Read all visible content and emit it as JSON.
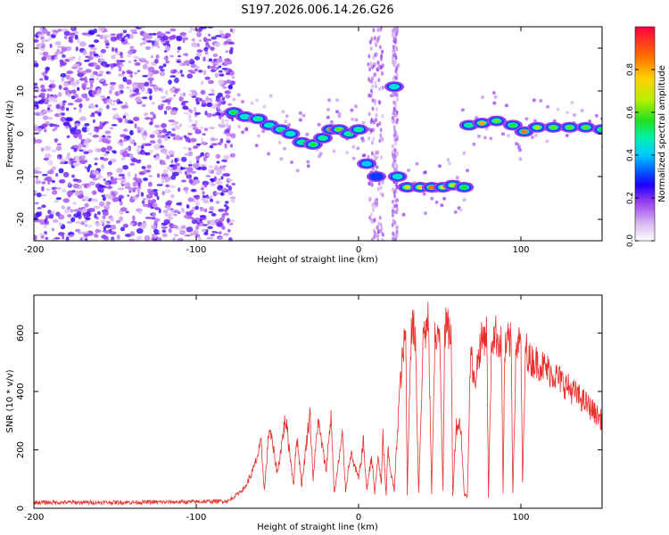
{
  "title": "S197.2026.006.14.26.G26",
  "chart_data": [
    {
      "type": "heatmap",
      "xlabel": "Height of straight line (km)",
      "ylabel": "Frequency (Hz)",
      "xlim": [
        -200,
        150
      ],
      "ylim": [
        -25,
        25
      ],
      "x_ticks": [
        -200,
        -100,
        0,
        100
      ],
      "y_ticks": [
        -20,
        -10,
        0,
        10,
        20
      ],
      "colorbar": {
        "label": "Normalized spectral amplitude",
        "range": [
          0,
          1
        ],
        "ticks": [
          0.0,
          0.2,
          0.4,
          0.6,
          0.8
        ],
        "tick_labels": [
          "0.0",
          "0.2",
          "0.4",
          "0.6",
          "0.8"
        ],
        "colors": [
          "#ffffff",
          "#d8b8f0",
          "#9a3ff0",
          "#1b00ff",
          "#00b0ff",
          "#00f0c0",
          "#20e020",
          "#c8f000",
          "#ffd000",
          "#ff7000",
          "#ff0040"
        ]
      },
      "noise_region": {
        "x_range": [
          -200,
          -77
        ],
        "amplitude": "0.1-0.3"
      },
      "frequency_track": [
        {
          "x": -77,
          "freq": 5.0,
          "amp": 0.55
        },
        {
          "x": -70,
          "freq": 4.0,
          "amp": 0.45
        },
        {
          "x": -62,
          "freq": 3.5,
          "amp": 0.5
        },
        {
          "x": -55,
          "freq": 2.0,
          "amp": 0.45
        },
        {
          "x": -48,
          "freq": 1.0,
          "amp": 0.5
        },
        {
          "x": -42,
          "freq": 0.0,
          "amp": 0.45
        },
        {
          "x": -35,
          "freq": -2.0,
          "amp": 0.5
        },
        {
          "x": -28,
          "freq": -2.5,
          "amp": 0.55
        },
        {
          "x": -22,
          "freq": -1.0,
          "amp": 0.5
        },
        {
          "x": -17,
          "freq": 1.0,
          "amp": 0.85
        },
        {
          "x": -12,
          "freq": 1.0,
          "amp": 0.6
        },
        {
          "x": -6,
          "freq": 0.0,
          "amp": 0.5
        },
        {
          "x": 0,
          "freq": 1.0,
          "amp": 0.5
        },
        {
          "x": 5,
          "freq": -7.0,
          "amp": 0.4
        },
        {
          "x": 11,
          "freq": -10.0,
          "amp": 0.3
        },
        {
          "x": 22,
          "freq": 11.0,
          "amp": 0.45
        },
        {
          "x": 24,
          "freq": -10.0,
          "amp": 0.45
        },
        {
          "x": 30,
          "freq": -12.5,
          "amp": 0.7
        },
        {
          "x": 38,
          "freq": -12.5,
          "amp": 0.75
        },
        {
          "x": 45,
          "freq": -12.5,
          "amp": 0.85
        },
        {
          "x": 52,
          "freq": -12.5,
          "amp": 0.7
        },
        {
          "x": 58,
          "freq": -12.0,
          "amp": 0.65
        },
        {
          "x": 65,
          "freq": -12.5,
          "amp": 0.55
        },
        {
          "x": 68,
          "freq": 2.0,
          "amp": 0.5
        },
        {
          "x": 76,
          "freq": 2.5,
          "amp": 0.8
        },
        {
          "x": 85,
          "freq": 3.0,
          "amp": 0.6
        },
        {
          "x": 95,
          "freq": 2.0,
          "amp": 0.55
        },
        {
          "x": 102,
          "freq": 0.5,
          "amp": 0.85
        },
        {
          "x": 110,
          "freq": 1.5,
          "amp": 0.65
        },
        {
          "x": 120,
          "freq": 1.5,
          "amp": 0.6
        },
        {
          "x": 130,
          "freq": 1.5,
          "amp": 0.6
        },
        {
          "x": 140,
          "freq": 1.5,
          "amp": 0.6
        },
        {
          "x": 150,
          "freq": 1.0,
          "amp": 0.55
        }
      ]
    },
    {
      "type": "line",
      "xlabel": "Height of straight line (km)",
      "ylabel": "SNR (10 * v/v)",
      "xlim": [
        -200,
        150
      ],
      "ylim": [
        0,
        730
      ],
      "x_ticks": [
        -200,
        -100,
        0,
        100
      ],
      "y_ticks": [
        0,
        200,
        400,
        600
      ],
      "series": [
        {
          "name": "SNR",
          "color": "#e8302c",
          "x": [
            -200,
            -150,
            -100,
            -80,
            -70,
            -65,
            -60,
            -58,
            -55,
            -50,
            -45,
            -40,
            -38,
            -35,
            -30,
            -28,
            -25,
            -20,
            -17,
            -15,
            -10,
            -8,
            -5,
            0,
            3,
            5,
            8,
            10,
            12,
            14,
            15,
            17,
            18,
            20,
            22,
            25,
            27,
            29,
            30,
            32,
            33,
            35,
            37,
            40,
            41,
            43,
            45,
            47,
            48,
            50,
            52,
            53,
            55,
            57,
            58,
            60,
            62,
            63,
            65,
            67,
            69,
            71,
            75,
            78,
            79,
            80,
            82,
            84,
            86,
            88,
            89,
            90,
            92,
            94,
            95,
            97,
            98,
            100,
            101,
            103,
            105,
            110,
            115,
            120,
            130,
            140,
            150
          ],
          "values": [
            20,
            20,
            22,
            25,
            70,
            130,
            220,
            60,
            280,
            120,
            310,
            80,
            250,
            80,
            330,
            100,
            300,
            130,
            320,
            50,
            250,
            60,
            190,
            100,
            230,
            60,
            180,
            50,
            180,
            80,
            250,
            40,
            200,
            120,
            60,
            380,
            510,
            600,
            50,
            560,
            620,
            600,
            50,
            620,
            600,
            640,
            50,
            590,
            550,
            600,
            60,
            620,
            610,
            600,
            40,
            280,
            290,
            280,
            50,
            40,
            560,
            420,
            560,
            600,
            600,
            40,
            580,
            600,
            580,
            560,
            50,
            530,
            570,
            570,
            50,
            550,
            570,
            560,
            80,
            560,
            510,
            500,
            480,
            460,
            410,
            360,
            300
          ]
        }
      ]
    }
  ]
}
